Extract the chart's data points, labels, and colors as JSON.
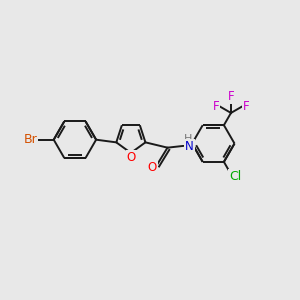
{
  "background_color": "#e8e8e8",
  "bond_color": "#1a1a1a",
  "bond_width": 1.4,
  "atom_colors": {
    "Br": "#d45000",
    "O": "#ff0000",
    "N": "#0000cc",
    "Cl": "#00aa00",
    "F": "#cc00cc"
  },
  "font_size": 8.5,
  "fig_width": 3.0,
  "fig_height": 3.0,
  "dpi": 100
}
